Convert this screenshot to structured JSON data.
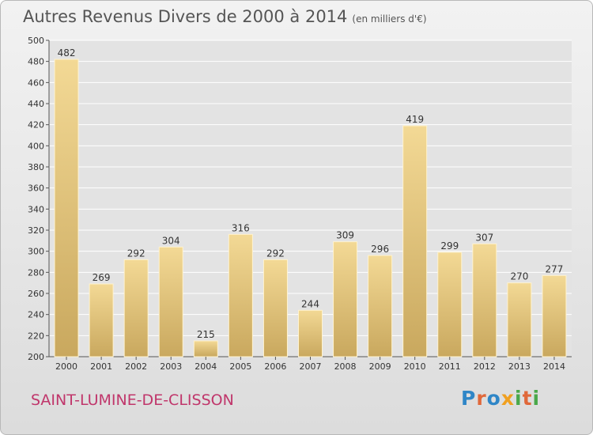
{
  "chart_data": {
    "type": "bar",
    "title": "Autres Revenus Divers de 2000 à 2014",
    "subtitle": "(en milliers d'€)",
    "categories": [
      "2000",
      "2001",
      "2002",
      "2003",
      "2004",
      "2005",
      "2006",
      "2007",
      "2008",
      "2009",
      "2010",
      "2011",
      "2012",
      "2013",
      "2014"
    ],
    "values": [
      482,
      269,
      292,
      304,
      215,
      316,
      292,
      244,
      309,
      296,
      419,
      299,
      307,
      270,
      277
    ],
    "ylim": [
      200,
      500
    ],
    "yticks": [
      200,
      220,
      240,
      260,
      280,
      300,
      320,
      340,
      360,
      380,
      400,
      420,
      440,
      460,
      480,
      500
    ],
    "grid": true,
    "bar_color": "#e8cf8c"
  },
  "footer": {
    "location": "SAINT-LUMINE-DE-CLISSON",
    "logo": "Proxiti"
  }
}
